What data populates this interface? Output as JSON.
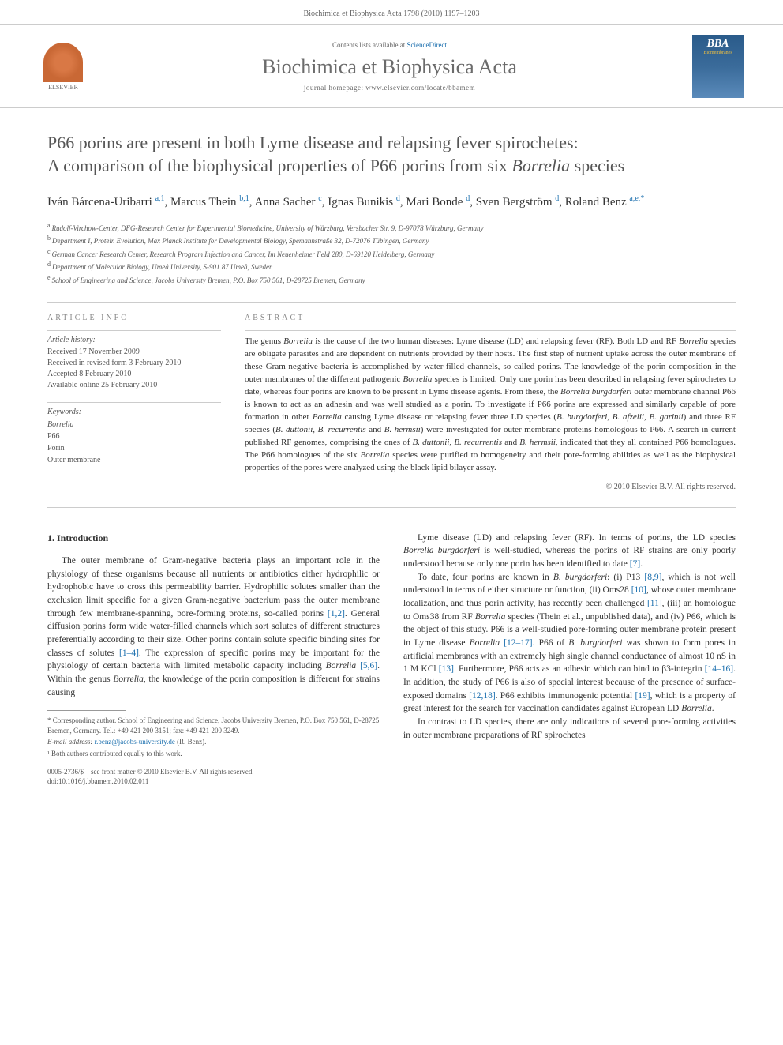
{
  "header": {
    "citation": "Biochimica et Biophysica Acta 1798 (2010) 1197–1203"
  },
  "banner": {
    "contents_prefix": "Contents lists available at ",
    "contents_link": "ScienceDirect",
    "journal_name": "Biochimica et Biophysica Acta",
    "homepage_label": "journal homepage: ",
    "homepage_url": "www.elsevier.com/locate/bbamem",
    "elsevier_label": "ELSEVIER",
    "bba_label": "BBA",
    "bba_sub": "Biomembranes"
  },
  "title": {
    "line1": "P66 porins are present in both Lyme disease and relapsing fever spirochetes:",
    "line2_a": "A comparison of the biophysical properties of P66 porins from six ",
    "line2_b": "Borrelia",
    "line2_c": " species"
  },
  "authors": [
    {
      "name": "Iván Bárcena-Uribarri",
      "sup": "a,1"
    },
    {
      "name": "Marcus Thein",
      "sup": "b,1"
    },
    {
      "name": "Anna Sacher",
      "sup": "c"
    },
    {
      "name": "Ignas Bunikis",
      "sup": "d"
    },
    {
      "name": "Mari Bonde",
      "sup": "d"
    },
    {
      "name": "Sven Bergström",
      "sup": "d"
    },
    {
      "name": "Roland Benz",
      "sup": "a,e,",
      "star": true
    }
  ],
  "affiliations": [
    {
      "sup": "a",
      "text": "Rudolf-Virchow-Center, DFG-Research Center for Experimental Biomedicine, University of Würzburg, Versbacher Str. 9, D-97078 Würzburg, Germany"
    },
    {
      "sup": "b",
      "text": "Department I, Protein Evolution, Max Planck Institute for Developmental Biology, Spemannstraße 32, D-72076 Tübingen, Germany"
    },
    {
      "sup": "c",
      "text": "German Cancer Research Center, Research Program Infection and Cancer, Im Neuenheimer Feld 280, D-69120 Heidelberg, Germany"
    },
    {
      "sup": "d",
      "text": "Department of Molecular Biology, Umeå University, S-901 87 Umeå, Sweden"
    },
    {
      "sup": "e",
      "text": "School of Engineering and Science, Jacobs University Bremen, P.O. Box 750 561, D-28725 Bremen, Germany"
    }
  ],
  "article_info": {
    "heading": "ARTICLE INFO",
    "history_title": "Article history:",
    "history": [
      "Received 17 November 2009",
      "Received in revised form 3 February 2010",
      "Accepted 8 February 2010",
      "Available online 25 February 2010"
    ],
    "keywords_title": "Keywords:",
    "keywords": [
      "Borrelia",
      "P66",
      "Porin",
      "Outer membrane"
    ]
  },
  "abstract": {
    "heading": "ABSTRACT",
    "text_parts": [
      {
        "t": "The genus ",
        "i": false
      },
      {
        "t": "Borrelia",
        "i": true
      },
      {
        "t": " is the cause of the two human diseases: Lyme disease (LD) and relapsing fever (RF). Both LD and RF ",
        "i": false
      },
      {
        "t": "Borrelia",
        "i": true
      },
      {
        "t": " species are obligate parasites and are dependent on nutrients provided by their hosts. The first step of nutrient uptake across the outer membrane of these Gram-negative bacteria is accomplished by water-filled channels, so-called porins. The knowledge of the porin composition in the outer membranes of the different pathogenic ",
        "i": false
      },
      {
        "t": "Borrelia",
        "i": true
      },
      {
        "t": " species is limited. Only one porin has been described in relapsing fever spirochetes to date, whereas four porins are known to be present in Lyme disease agents. From these, the ",
        "i": false
      },
      {
        "t": "Borrelia burgdorferi",
        "i": true
      },
      {
        "t": " outer membrane channel P66 is known to act as an adhesin and was well studied as a porin. To investigate if P66 porins are expressed and similarly capable of pore formation in other ",
        "i": false
      },
      {
        "t": "Borrelia",
        "i": true
      },
      {
        "t": " causing Lyme disease or relapsing fever three LD species (",
        "i": false
      },
      {
        "t": "B. burgdorferi, B. afzelii, B. garinii",
        "i": true
      },
      {
        "t": ") and three RF species (",
        "i": false
      },
      {
        "t": "B. duttonii, B. recurrentis",
        "i": true
      },
      {
        "t": " and ",
        "i": false
      },
      {
        "t": "B. hermsii",
        "i": true
      },
      {
        "t": ") were investigated for outer membrane proteins homologous to P66. A search in current published RF genomes, comprising the ones of ",
        "i": false
      },
      {
        "t": "B. duttonii, B. recurrentis",
        "i": true
      },
      {
        "t": " and ",
        "i": false
      },
      {
        "t": "B. hermsii",
        "i": true
      },
      {
        "t": ", indicated that they all contained P66 homologues. The P66 homologues of the six ",
        "i": false
      },
      {
        "t": "Borrelia",
        "i": true
      },
      {
        "t": " species were purified to homogeneity and their pore-forming abilities as well as the biophysical properties of the pores were analyzed using the black lipid bilayer assay.",
        "i": false
      }
    ],
    "copyright": "© 2010 Elsevier B.V. All rights reserved."
  },
  "body": {
    "section_heading": "1. Introduction",
    "col1_paras": [
      {
        "parts": [
          {
            "t": "The outer membrane of Gram-negative bacteria plays an important role in the physiology of these organisms because all nutrients or antibiotics either hydrophilic or hydrophobic have to cross this permeability barrier. Hydrophilic solutes smaller than the exclusion limit specific for a given Gram-negative bacterium pass the outer membrane through few membrane-spanning, pore-forming proteins, so-called porins ",
            "i": false
          },
          {
            "t": "[1,2]",
            "ref": true
          },
          {
            "t": ". General diffusion porins form wide water-filled channels which sort solutes of different structures preferentially according to their size. Other porins contain solute specific binding sites for classes of solutes ",
            "i": false
          },
          {
            "t": "[1–4]",
            "ref": true
          },
          {
            "t": ". The expression of specific porins may be important for the physiology of certain bacteria with limited metabolic capacity including ",
            "i": false
          },
          {
            "t": "Borrelia",
            "i": true
          },
          {
            "t": " ",
            "i": false
          },
          {
            "t": "[5,6]",
            "ref": true
          },
          {
            "t": ". Within the genus ",
            "i": false
          },
          {
            "t": "Borrelia",
            "i": true
          },
          {
            "t": ", the knowledge of the porin composition is different for strains causing",
            "i": false
          }
        ]
      }
    ],
    "col2_paras": [
      {
        "parts": [
          {
            "t": "Lyme disease (LD) and relapsing fever (RF). In terms of porins, the LD species ",
            "i": false
          },
          {
            "t": "Borrelia burgdorferi",
            "i": true
          },
          {
            "t": " is well-studied, whereas the porins of RF strains are only poorly understood because only one porin has been identified to date ",
            "i": false
          },
          {
            "t": "[7]",
            "ref": true
          },
          {
            "t": ".",
            "i": false
          }
        ]
      },
      {
        "parts": [
          {
            "t": "To date, four porins are known in ",
            "i": false
          },
          {
            "t": "B. burgdorferi",
            "i": true
          },
          {
            "t": ": (i) P13 ",
            "i": false
          },
          {
            "t": "[8,9]",
            "ref": true
          },
          {
            "t": ", which is not well understood in terms of either structure or function, (ii) Oms28 ",
            "i": false
          },
          {
            "t": "[10]",
            "ref": true
          },
          {
            "t": ", whose outer membrane localization, and thus porin activity, has recently been challenged ",
            "i": false
          },
          {
            "t": "[11]",
            "ref": true
          },
          {
            "t": ", (iii) an homologue to Oms38 from RF ",
            "i": false
          },
          {
            "t": "Borrelia",
            "i": true
          },
          {
            "t": " species (Thein et al., unpublished data), and (iv) P66, which is the object of this study. P66 is a well-studied pore-forming outer membrane protein present in Lyme disease ",
            "i": false
          },
          {
            "t": "Borrelia",
            "i": true
          },
          {
            "t": " ",
            "i": false
          },
          {
            "t": "[12–17]",
            "ref": true
          },
          {
            "t": ". P66 of ",
            "i": false
          },
          {
            "t": "B. burgdorferi",
            "i": true
          },
          {
            "t": " was shown to form pores in artificial membranes with an extremely high single channel conductance of almost 10 nS in 1 M KCl ",
            "i": false
          },
          {
            "t": "[13]",
            "ref": true
          },
          {
            "t": ". Furthermore, P66 acts as an adhesin which can bind to β3-integrin ",
            "i": false
          },
          {
            "t": "[14–16]",
            "ref": true
          },
          {
            "t": ". In addition, the study of P66 is also of special interest because of the presence of surface-exposed domains ",
            "i": false
          },
          {
            "t": "[12,18]",
            "ref": true
          },
          {
            "t": ". P66 exhibits immunogenic potential ",
            "i": false
          },
          {
            "t": "[19]",
            "ref": true
          },
          {
            "t": ", which is a property of great interest for the search for vaccination candidates against European LD ",
            "i": false
          },
          {
            "t": "Borrelia",
            "i": true
          },
          {
            "t": ".",
            "i": false
          }
        ]
      },
      {
        "parts": [
          {
            "t": "In contrast to LD species, there are only indications of several pore-forming activities in outer membrane preparations of RF spirochetes",
            "i": false
          }
        ]
      }
    ]
  },
  "footnotes": {
    "corr_label": "* Corresponding author. School of Engineering and Science, Jacobs University Bremen, P.O. Box 750 561, D-28725 Bremen, Germany. Tel.: +49 421 200 3151; fax: +49 421 200 3249.",
    "email_label": "E-mail address:",
    "email": "r.benz@jacobs-university.de",
    "email_who": "(R. Benz).",
    "equal": "¹ Both authors contributed equally to this work."
  },
  "footer": {
    "line1": "0005-2736/$ – see front matter © 2010 Elsevier B.V. All rights reserved.",
    "line2": "doi:10.1016/j.bbamem.2010.02.011"
  },
  "colors": {
    "link": "#1b6fae",
    "text": "#333333",
    "muted": "#666666",
    "rule": "#cccccc"
  }
}
